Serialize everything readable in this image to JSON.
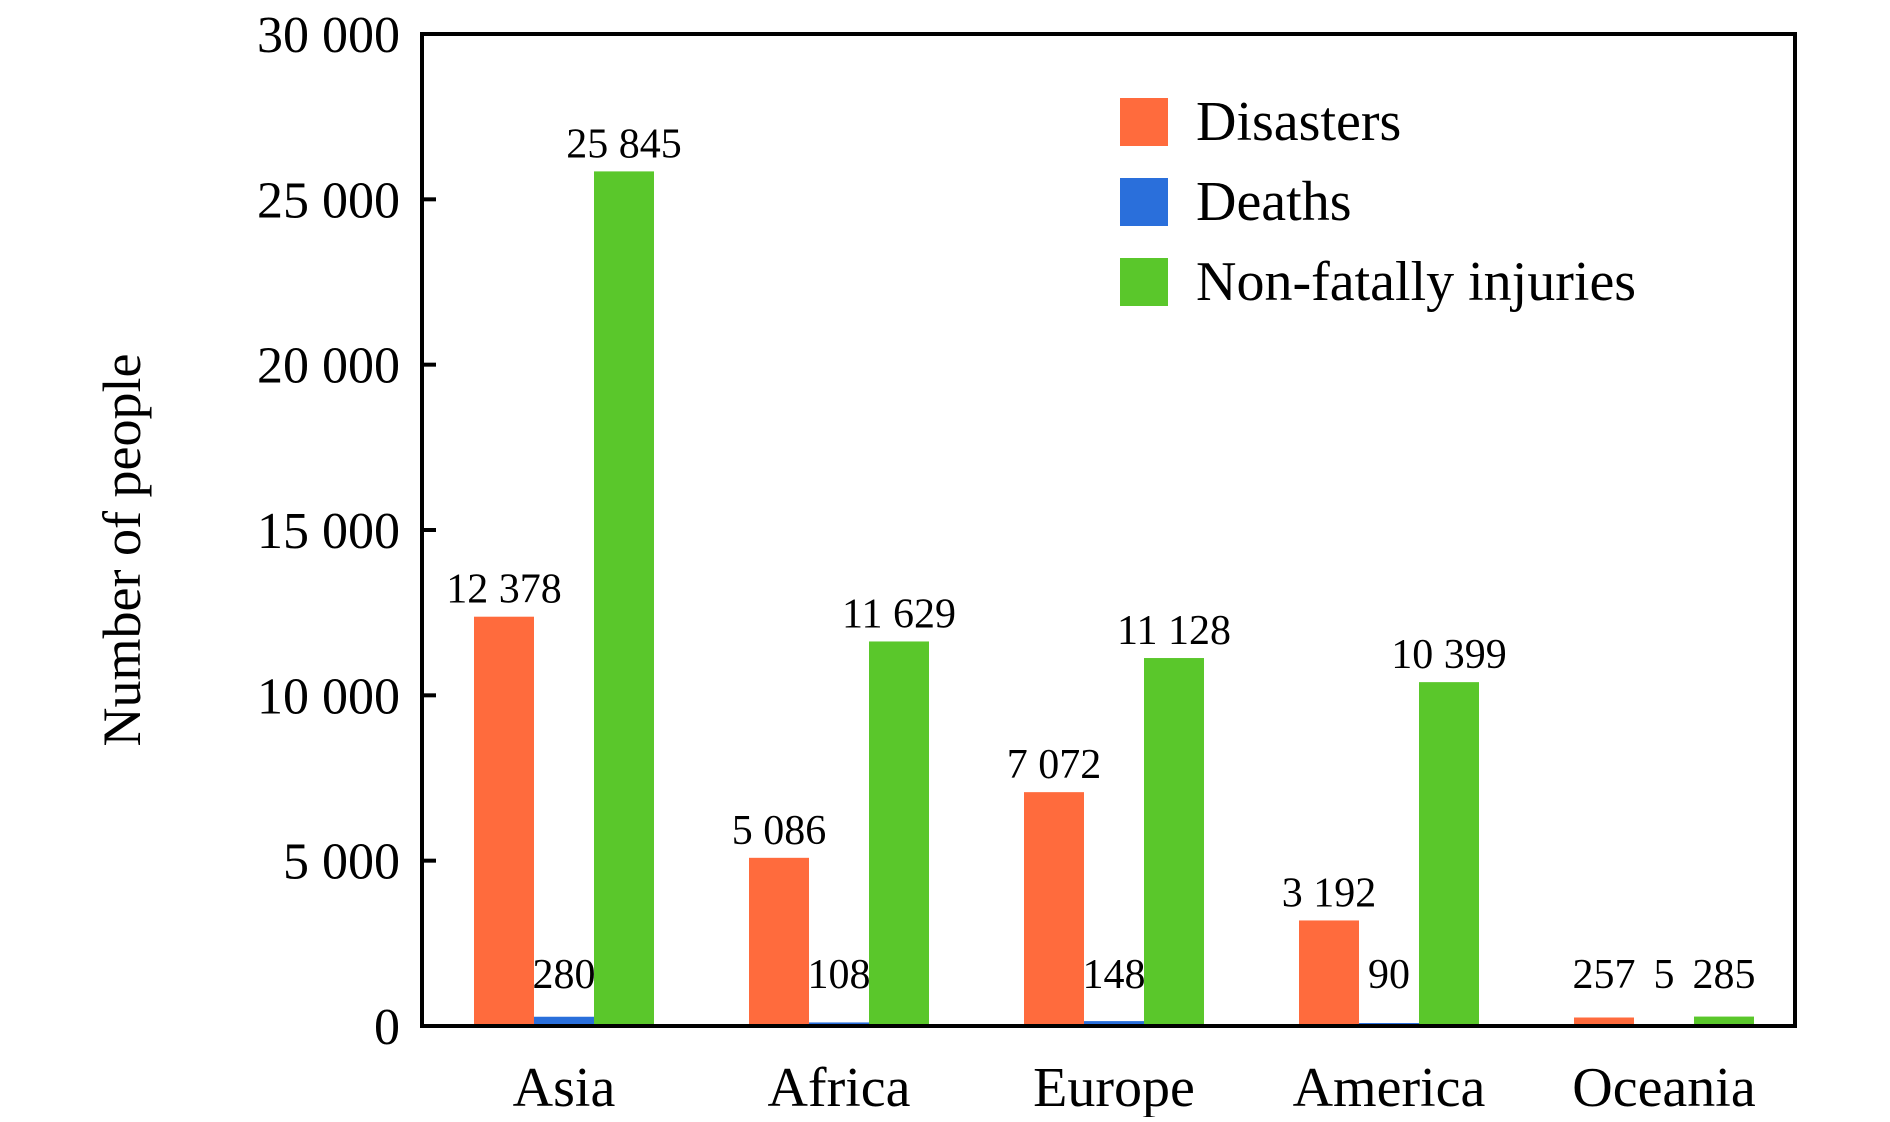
{
  "chart_data": {
    "type": "bar",
    "categories": [
      "Asia",
      "Africa",
      "Europe",
      "America",
      "Oceania"
    ],
    "series": [
      {
        "name": "Disasters",
        "values": [
          12378,
          5086,
          7072,
          3192,
          257
        ],
        "labels": [
          "12 378",
          "5 086",
          "7 072",
          "3 192",
          "257"
        ]
      },
      {
        "name": "Deaths",
        "values": [
          280,
          108,
          148,
          90,
          5
        ],
        "labels": [
          "280",
          "108",
          "148",
          "90",
          "5"
        ]
      },
      {
        "name": "Non-fatally injuries",
        "values": [
          25845,
          11629,
          11128,
          10399,
          285
        ],
        "labels": [
          "25 845",
          "11 629",
          "11 128",
          "10 399",
          "285"
        ]
      }
    ],
    "colors": {
      "Disasters": "#ff6b3d",
      "Deaths": "#2a6fdb",
      "Non-fatally injuries": "#5ac72b"
    },
    "xlabel": "",
    "ylabel": "Number of people",
    "ylim": [
      0,
      30000
    ],
    "yticks": [
      0,
      5000,
      10000,
      15000,
      20000,
      25000,
      30000
    ],
    "ytick_labels": [
      "0",
      "5 000",
      "10 000",
      "15 000",
      "20 000",
      "25 000",
      "30 000"
    ],
    "legend_position": "top-right",
    "grid": false
  }
}
